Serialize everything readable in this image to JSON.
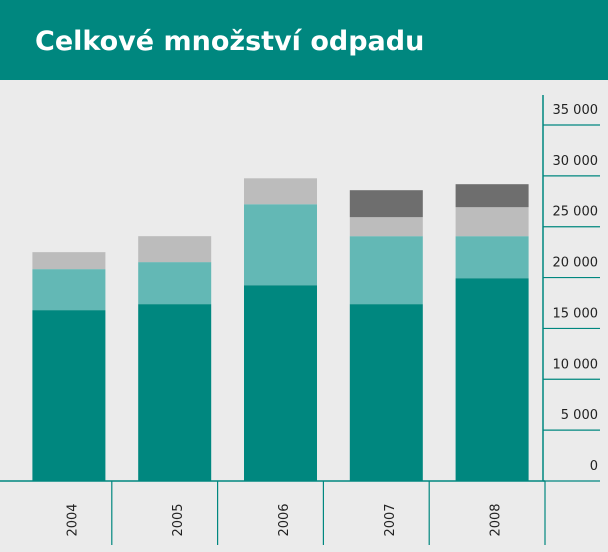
{
  "chart_data": {
    "type": "bar",
    "stacked": true,
    "title": "Celkové množství odpadu",
    "categories": [
      "2004",
      "2005",
      "2006",
      "2007",
      "2008"
    ],
    "series": [
      {
        "color": "#00877f",
        "values": [
          16800,
          17390,
          19250,
          17390,
          19940
        ]
      },
      {
        "color": "#63b8b5",
        "values": [
          4030,
          4130,
          7960,
          6680,
          4130
        ]
      },
      {
        "color": "#bcbcbc",
        "values": [
          1670,
          2550,
          2550,
          1870,
          2850
        ]
      },
      {
        "color": "#6e6e6e",
        "values": [
          null,
          null,
          null,
          2650,
          2260
        ]
      }
    ],
    "ylim": [
      0,
      35000
    ],
    "yticks": [
      {
        "value": 0,
        "label": "0"
      },
      {
        "value": 5000,
        "label": "5 000"
      },
      {
        "value": 10000,
        "label": "10 000"
      },
      {
        "value": 15000,
        "label": "15 000"
      },
      {
        "value": 20000,
        "label": "20 000"
      },
      {
        "value": 25000,
        "label": "25 000"
      },
      {
        "value": 30000,
        "label": "30 000"
      },
      {
        "value": 35000,
        "label": "35 000"
      }
    ]
  }
}
